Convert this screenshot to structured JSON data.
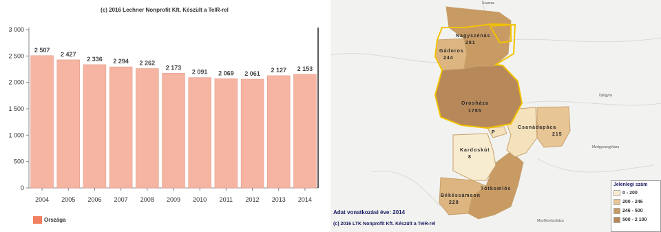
{
  "chart_data": {
    "type": "bar",
    "title": "(c) 2016 Lechner Nonprofit Kft. Készült a TeIR-rel",
    "categories": [
      "2004",
      "2005",
      "2006",
      "2007",
      "2008",
      "2009",
      "2010",
      "2011",
      "2012",
      "2013",
      "2014"
    ],
    "series": [
      {
        "name": "Országa",
        "values": [
          2507,
          2427,
          2336,
          2294,
          2262,
          2173,
          2091,
          2069,
          2061,
          2127,
          2153
        ]
      }
    ],
    "value_labels": [
      "2 507",
      "2 427",
      "2 336",
      "2 294",
      "2 262",
      "2 173",
      "2 091",
      "2 069",
      "2 061",
      "2 127",
      "2 153"
    ],
    "yticks": [
      0,
      500,
      1000,
      1500,
      2000,
      2500,
      3000
    ],
    "ytick_labels": [
      "0",
      "500",
      "1 000",
      "1 500",
      "2 000",
      "2 500",
      "3 000"
    ],
    "ylim": [
      0,
      3000
    ],
    "xlabel": "",
    "ylabel": "",
    "grid": false,
    "legend_position": "bottom-left",
    "colors": {
      "bar": "#f6b5a3",
      "bar_edge": "#e49a86",
      "legend_swatch": "#f08060"
    }
  },
  "map": {
    "municipalities": [
      {
        "id": "nagyszenas",
        "label": "Nagyszénás",
        "value": "281",
        "color": "#c89a64"
      },
      {
        "id": "gadoros",
        "label": "Gádoros",
        "value": "244",
        "color": "#ddb580"
      },
      {
        "id": "oroshaza",
        "label": "Orosháza",
        "value": "1785",
        "color": "#b7885a"
      },
      {
        "id": "csanadapaca",
        "label": "Csanádapáca",
        "value": "215",
        "color": "#e8c595"
      },
      {
        "id": "pusztafoldvar",
        "label": "Pusztaföldvár",
        "value": "",
        "color": "#f4e2bc"
      },
      {
        "id": "kardoskut",
        "label": "Kardoskút",
        "value": "8",
        "color": "#f8ecd0"
      },
      {
        "id": "tótkomlos",
        "label": "Tótkomlós",
        "value": "",
        "color": "#c89a64"
      },
      {
        "id": "bekessamson",
        "label": "Békéssámson",
        "value": "228",
        "color": "#ddb580"
      },
      {
        "id": "p-small",
        "label": "P",
        "value": "",
        "color": "#f4e2bc"
      }
    ],
    "places": [
      "Szarvas",
      "Újkígyós",
      "Medgyesegyháza",
      "Mezőkovácsháza"
    ],
    "year_text": "Adat vonatkozási éve: 2014",
    "copyright": "(c) 2016 LTK Nonprofit Kft. Készült a TeIR-rel",
    "legend": {
      "title": "Jelenlegi szám",
      "items": [
        {
          "label": "0 - 200",
          "color": "#f8ecd0"
        },
        {
          "label": "200 - 246",
          "color": "#e8c595"
        },
        {
          "label": "246 - 500",
          "color": "#c89a64"
        },
        {
          "label": "500 - 2 100",
          "color": "#b7885a"
        }
      ]
    }
  }
}
